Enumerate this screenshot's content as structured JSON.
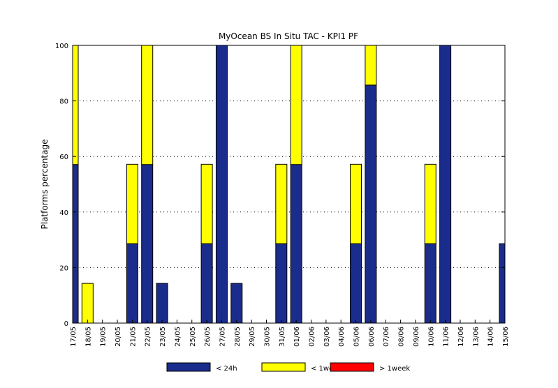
{
  "chart_data": {
    "type": "bar",
    "stacked": true,
    "title": "MyOcean  BS In Situ TAC - KPI1  PF",
    "xlabel": "",
    "ylabel": "Platforms percentage",
    "ylim": [
      0,
      100
    ],
    "yticks": [
      0,
      20,
      40,
      60,
      80,
      100
    ],
    "grid": "horizontal dotted",
    "legend_position": "bottom",
    "categories": [
      "17/05",
      "18/05",
      "19/05",
      "20/05",
      "21/05",
      "22/05",
      "23/05",
      "24/05",
      "25/05",
      "26/05",
      "27/05",
      "28/05",
      "29/05",
      "30/05",
      "31/05",
      "01/06",
      "02/06",
      "03/06",
      "04/06",
      "05/06",
      "06/06",
      "07/06",
      "08/06",
      "09/06",
      "10/06",
      "11/06",
      "12/06",
      "13/06",
      "14/06",
      "15/06"
    ],
    "series": [
      {
        "name": "< 24h",
        "color": "#1a2d8c",
        "values": [
          57.1,
          0,
          0,
          0,
          28.6,
          57.1,
          14.3,
          0,
          0,
          28.6,
          100,
          14.3,
          0,
          0,
          28.6,
          57.1,
          0,
          0,
          0,
          28.6,
          85.7,
          0,
          0,
          0,
          28.6,
          100,
          0,
          0,
          0,
          28.6
        ]
      },
      {
        "name": "< 1week",
        "color": "#ffff00",
        "values": [
          42.9,
          14.3,
          0,
          0,
          28.6,
          42.9,
          0,
          0,
          0,
          28.6,
          0,
          0,
          0,
          0,
          28.6,
          42.9,
          0,
          0,
          0,
          28.6,
          14.3,
          0,
          0,
          0,
          28.6,
          0,
          0,
          0,
          0,
          0
        ]
      },
      {
        "name": "> 1week",
        "color": "#ff0000",
        "values": [
          0,
          0,
          0,
          0,
          0,
          0,
          0,
          0,
          0,
          0,
          0,
          0,
          0,
          0,
          0,
          0,
          0,
          0,
          0,
          0,
          0,
          0,
          0,
          0,
          0,
          0,
          0,
          0,
          0,
          0
        ]
      }
    ]
  }
}
